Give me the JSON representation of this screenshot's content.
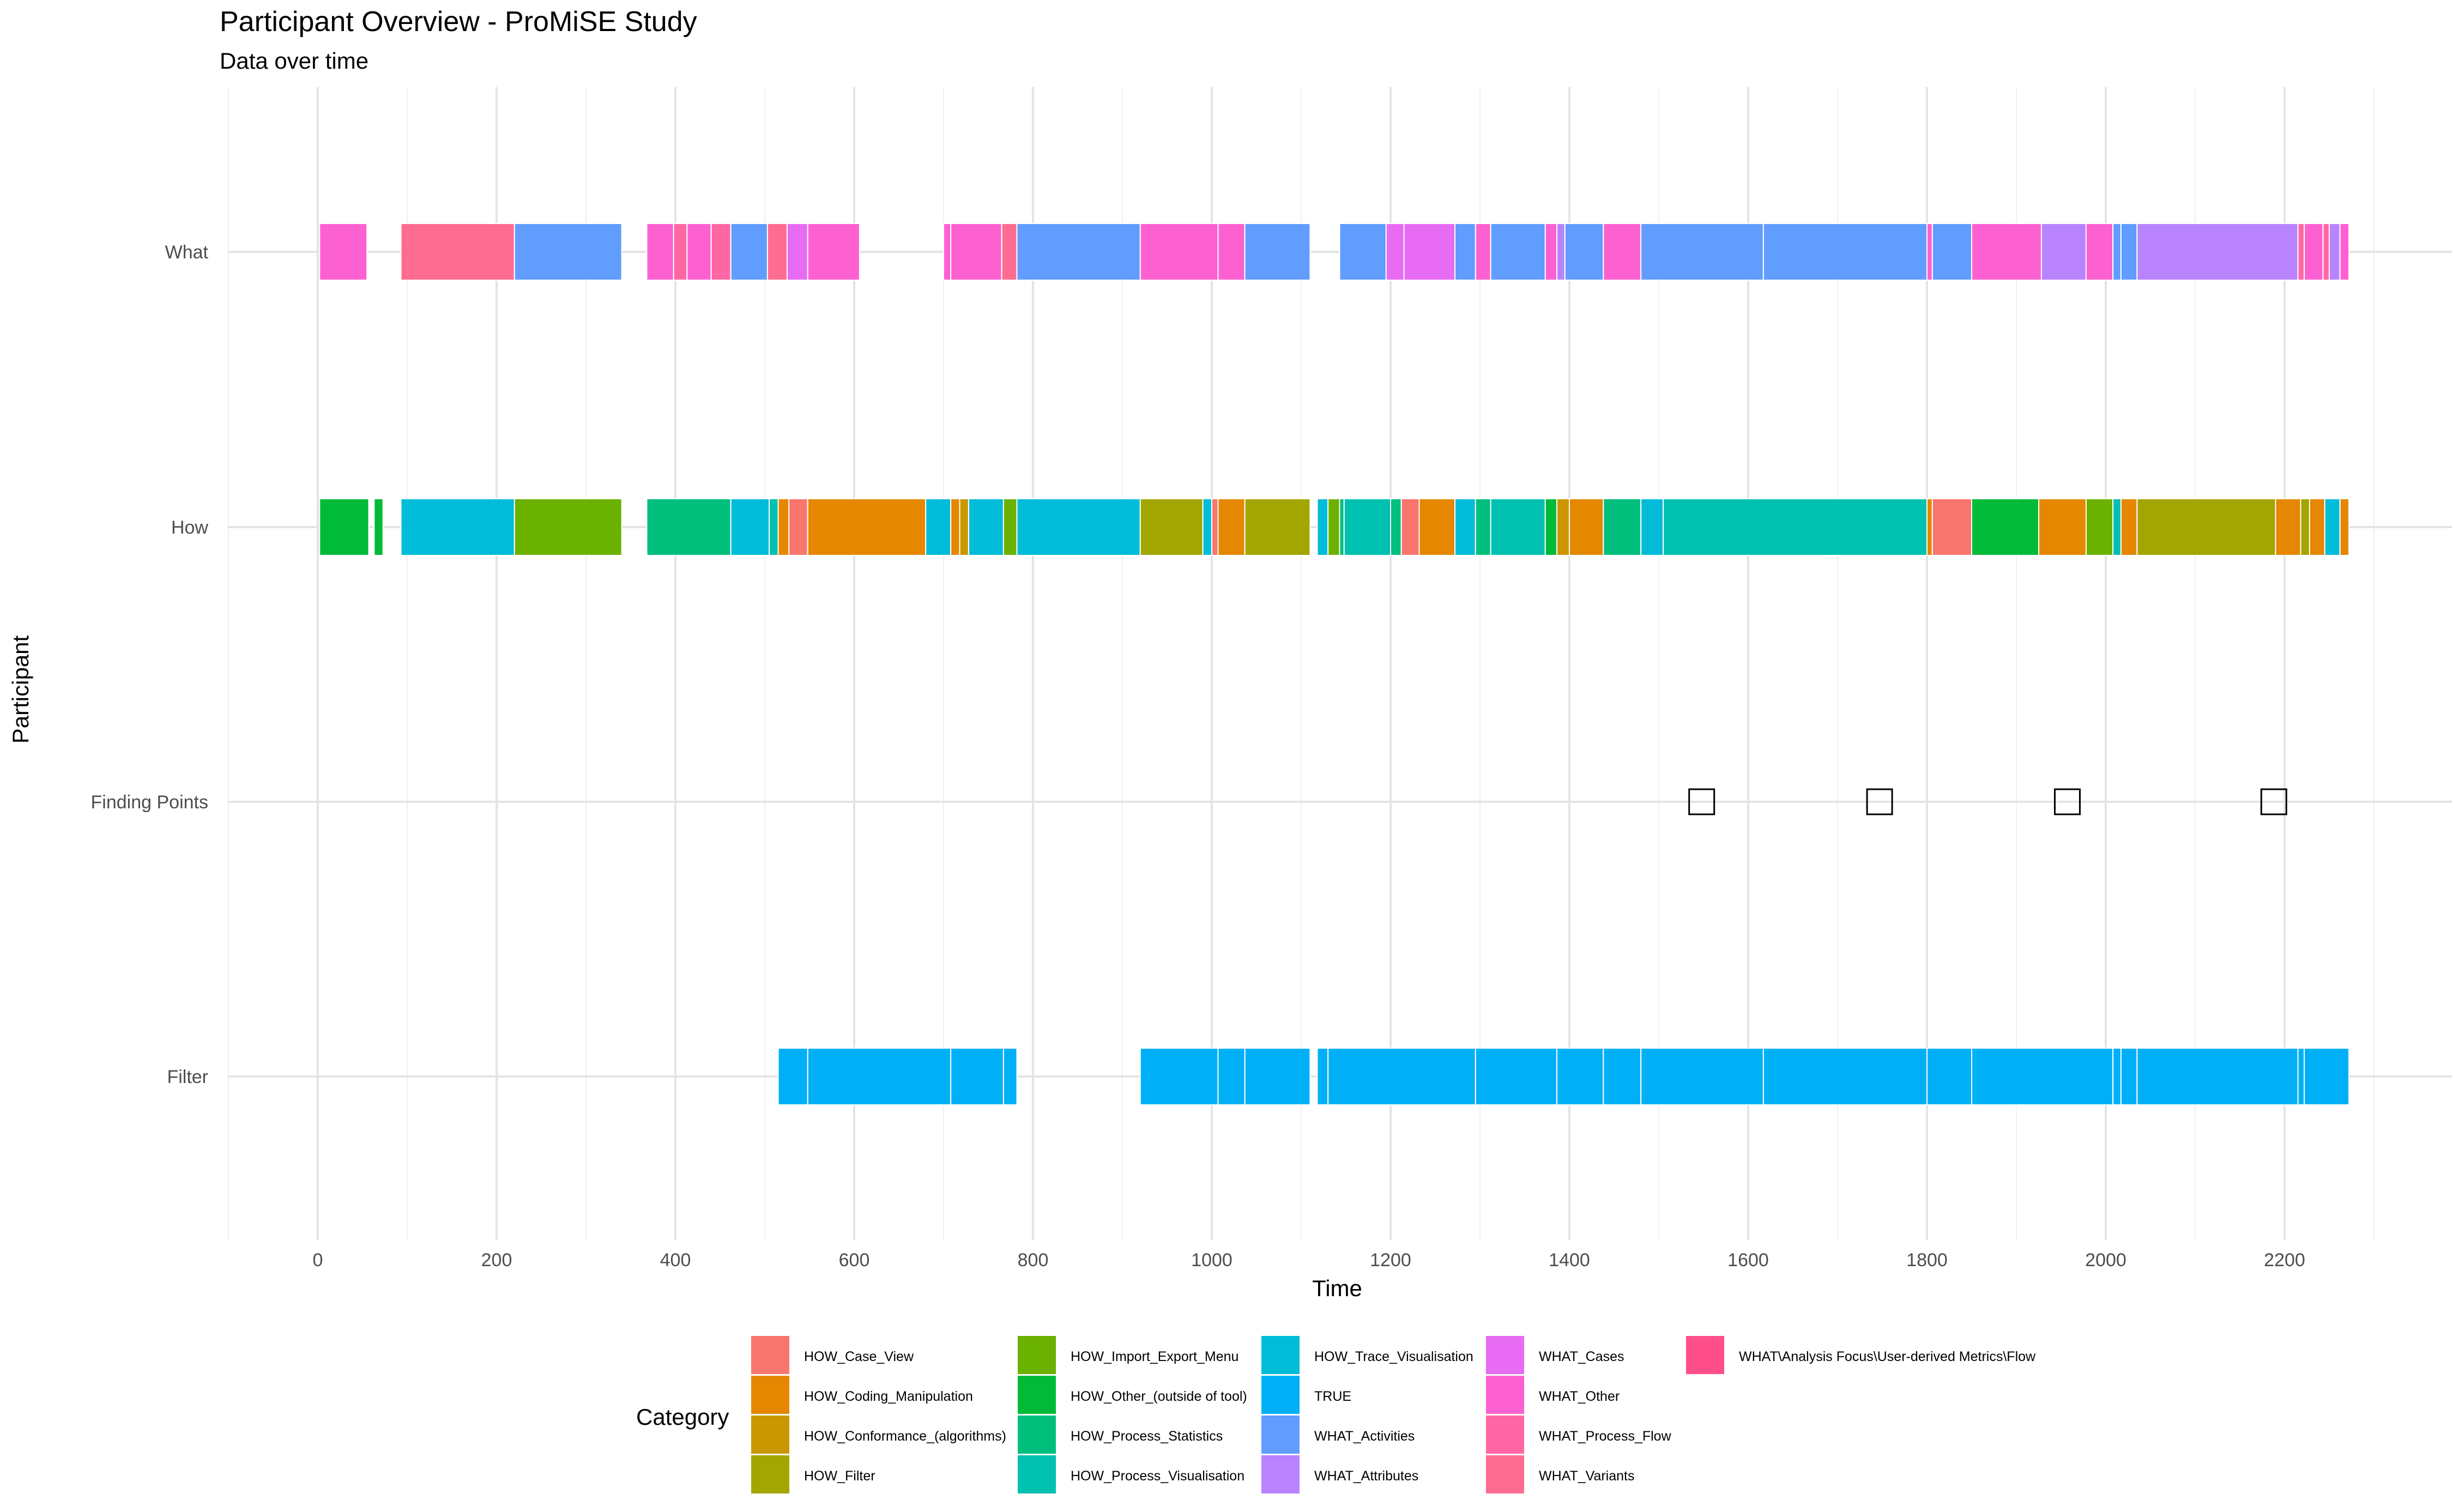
{
  "chart_data": {
    "type": "timeline",
    "title": "Participant Overview - ProMiSE Study",
    "subtitle": "Data over time",
    "xlabel": "Time",
    "ylabel": "Participant",
    "xlim": [
      -100,
      2380
    ],
    "x_ticks": [
      0,
      200,
      400,
      600,
      800,
      1000,
      1200,
      1400,
      1600,
      1800,
      2000,
      2200
    ],
    "grid": true,
    "legend": {
      "title": "Category",
      "position": "bottom"
    },
    "rows": [
      "What",
      "How",
      "Finding Points",
      "Filter"
    ],
    "categories": [
      {
        "name": "HOW_Case_View",
        "color": "#F8766D"
      },
      {
        "name": "HOW_Coding_Manipulation",
        "color": "#E58700"
      },
      {
        "name": "HOW_Conformance_(algorithms)",
        "color": "#C99800"
      },
      {
        "name": "HOW_Filter",
        "color": "#A3A500"
      },
      {
        "name": "HOW_Import_Export_Menu",
        "color": "#6BB100"
      },
      {
        "name": "HOW_Other_(outside of tool)",
        "color": "#00BA38"
      },
      {
        "name": "HOW_Process_Statistics",
        "color": "#00BF7D"
      },
      {
        "name": "HOW_Process_Visualisation",
        "color": "#00C0AF"
      },
      {
        "name": "HOW_Trace_Visualisation",
        "color": "#00BCD8"
      },
      {
        "name": "TRUE",
        "color": "#00B0F6"
      },
      {
        "name": "WHAT_Activities",
        "color": "#619CFF"
      },
      {
        "name": "WHAT_Attributes",
        "color": "#B983FF"
      },
      {
        "name": "WHAT_Cases",
        "color": "#E76BF3"
      },
      {
        "name": "WHAT_Other",
        "color": "#FD61D1"
      },
      {
        "name": "WHAT_Process_Flow",
        "color": "#FF67A4"
      },
      {
        "name": "WHAT_Variants",
        "color": "#FF6C91"
      },
      {
        "name": "WHAT\\Analysis Focus\\User-derived Metrics\\Flow",
        "color": "#FF4F8B"
      }
    ],
    "series": [
      {
        "row": "What",
        "segments": [
          {
            "start": 2,
            "end": 55,
            "category": "WHAT_Other"
          },
          {
            "start": 93,
            "end": 220,
            "category": "WHAT_Variants"
          },
          {
            "start": 220,
            "end": 340,
            "category": "WHAT_Activities"
          },
          {
            "start": 368,
            "end": 398,
            "category": "WHAT_Other"
          },
          {
            "start": 398,
            "end": 413,
            "category": "WHAT_Process_Flow"
          },
          {
            "start": 413,
            "end": 440,
            "category": "WHAT_Other"
          },
          {
            "start": 440,
            "end": 462,
            "category": "WHAT_Process_Flow"
          },
          {
            "start": 462,
            "end": 503,
            "category": "WHAT_Activities"
          },
          {
            "start": 503,
            "end": 525,
            "category": "WHAT_Variants"
          },
          {
            "start": 525,
            "end": 548,
            "category": "WHAT_Cases"
          },
          {
            "start": 548,
            "end": 606,
            "category": "WHAT_Other"
          },
          {
            "start": 700,
            "end": 708,
            "category": "WHAT_Other"
          },
          {
            "start": 708,
            "end": 765,
            "category": "WHAT_Other"
          },
          {
            "start": 765,
            "end": 782,
            "category": "WHAT_Variants"
          },
          {
            "start": 782,
            "end": 920,
            "category": "WHAT_Activities"
          },
          {
            "start": 920,
            "end": 1007,
            "category": "WHAT_Other"
          },
          {
            "start": 1007,
            "end": 1037,
            "category": "WHAT_Other"
          },
          {
            "start": 1037,
            "end": 1110,
            "category": "WHAT_Activities"
          },
          {
            "start": 1143,
            "end": 1195,
            "category": "WHAT_Activities"
          },
          {
            "start": 1195,
            "end": 1215,
            "category": "WHAT_Cases"
          },
          {
            "start": 1215,
            "end": 1272,
            "category": "WHAT_Cases"
          },
          {
            "start": 1272,
            "end": 1295,
            "category": "WHAT_Activities"
          },
          {
            "start": 1295,
            "end": 1312,
            "category": "WHAT_Other"
          },
          {
            "start": 1312,
            "end": 1373,
            "category": "WHAT_Activities"
          },
          {
            "start": 1373,
            "end": 1386,
            "category": "WHAT_Other"
          },
          {
            "start": 1386,
            "end": 1395,
            "category": "WHAT_Attributes"
          },
          {
            "start": 1395,
            "end": 1438,
            "category": "WHAT_Activities"
          },
          {
            "start": 1438,
            "end": 1480,
            "category": "WHAT_Other"
          },
          {
            "start": 1480,
            "end": 1617,
            "category": "WHAT_Activities"
          },
          {
            "start": 1617,
            "end": 1800,
            "category": "WHAT_Activities"
          },
          {
            "start": 1800,
            "end": 1806,
            "category": "WHAT_Other"
          },
          {
            "start": 1806,
            "end": 1850,
            "category": "WHAT_Activities"
          },
          {
            "start": 1850,
            "end": 1928,
            "category": "WHAT_Other"
          },
          {
            "start": 1928,
            "end": 1978,
            "category": "WHAT_Attributes"
          },
          {
            "start": 1978,
            "end": 2008,
            "category": "WHAT_Other"
          },
          {
            "start": 2008,
            "end": 2017,
            "category": "WHAT_Activities"
          },
          {
            "start": 2017,
            "end": 2035,
            "category": "WHAT_Activities"
          },
          {
            "start": 2035,
            "end": 2215,
            "category": "WHAT_Attributes"
          },
          {
            "start": 2215,
            "end": 2222,
            "category": "WHAT_Process_Flow"
          },
          {
            "start": 2222,
            "end": 2243,
            "category": "WHAT_Other"
          },
          {
            "start": 2243,
            "end": 2250,
            "category": "WHAT_Process_Flow"
          },
          {
            "start": 2250,
            "end": 2262,
            "category": "WHAT_Attributes"
          },
          {
            "start": 2262,
            "end": 2272,
            "category": "WHAT_Other"
          }
        ]
      },
      {
        "row": "How",
        "segments": [
          {
            "start": 2,
            "end": 57,
            "category": "HOW_Other_(outside of tool)"
          },
          {
            "start": 63,
            "end": 73,
            "category": "HOW_Other_(outside of tool)"
          },
          {
            "start": 93,
            "end": 220,
            "category": "HOW_Trace_Visualisation"
          },
          {
            "start": 220,
            "end": 340,
            "category": "HOW_Import_Export_Menu"
          },
          {
            "start": 368,
            "end": 462,
            "category": "HOW_Process_Statistics"
          },
          {
            "start": 462,
            "end": 505,
            "category": "HOW_Trace_Visualisation"
          },
          {
            "start": 505,
            "end": 515,
            "category": "HOW_Process_Visualisation"
          },
          {
            "start": 515,
            "end": 527,
            "category": "HOW_Coding_Manipulation"
          },
          {
            "start": 527,
            "end": 548,
            "category": "HOW_Case_View"
          },
          {
            "start": 548,
            "end": 680,
            "category": "HOW_Coding_Manipulation"
          },
          {
            "start": 680,
            "end": 708,
            "category": "HOW_Trace_Visualisation"
          },
          {
            "start": 708,
            "end": 718,
            "category": "HOW_Coding_Manipulation"
          },
          {
            "start": 718,
            "end": 728,
            "category": "HOW_Conformance_(algorithms)"
          },
          {
            "start": 728,
            "end": 767,
            "category": "HOW_Trace_Visualisation"
          },
          {
            "start": 767,
            "end": 782,
            "category": "HOW_Import_Export_Menu"
          },
          {
            "start": 782,
            "end": 920,
            "category": "HOW_Trace_Visualisation"
          },
          {
            "start": 920,
            "end": 990,
            "category": "HOW_Filter"
          },
          {
            "start": 990,
            "end": 1000,
            "category": "HOW_Trace_Visualisation"
          },
          {
            "start": 1000,
            "end": 1007,
            "category": "HOW_Case_View"
          },
          {
            "start": 1007,
            "end": 1037,
            "category": "HOW_Coding_Manipulation"
          },
          {
            "start": 1037,
            "end": 1110,
            "category": "HOW_Filter"
          },
          {
            "start": 1118,
            "end": 1130,
            "category": "HOW_Trace_Visualisation"
          },
          {
            "start": 1130,
            "end": 1143,
            "category": "HOW_Import_Export_Menu"
          },
          {
            "start": 1143,
            "end": 1148,
            "category": "HOW_Process_Statistics"
          },
          {
            "start": 1148,
            "end": 1200,
            "category": "HOW_Process_Visualisation"
          },
          {
            "start": 1200,
            "end": 1212,
            "category": "HOW_Process_Statistics"
          },
          {
            "start": 1212,
            "end": 1232,
            "category": "HOW_Case_View"
          },
          {
            "start": 1232,
            "end": 1272,
            "category": "HOW_Coding_Manipulation"
          },
          {
            "start": 1272,
            "end": 1295,
            "category": "HOW_Trace_Visualisation"
          },
          {
            "start": 1295,
            "end": 1312,
            "category": "HOW_Process_Statistics"
          },
          {
            "start": 1312,
            "end": 1373,
            "category": "HOW_Process_Visualisation"
          },
          {
            "start": 1373,
            "end": 1386,
            "category": "HOW_Other_(outside of tool)"
          },
          {
            "start": 1386,
            "end": 1400,
            "category": "HOW_Conformance_(algorithms)"
          },
          {
            "start": 1400,
            "end": 1438,
            "category": "HOW_Coding_Manipulation"
          },
          {
            "start": 1438,
            "end": 1480,
            "category": "HOW_Process_Statistics"
          },
          {
            "start": 1480,
            "end": 1505,
            "category": "HOW_Trace_Visualisation"
          },
          {
            "start": 1505,
            "end": 1800,
            "category": "HOW_Process_Visualisation"
          },
          {
            "start": 1800,
            "end": 1806,
            "category": "HOW_Coding_Manipulation"
          },
          {
            "start": 1806,
            "end": 1850,
            "category": "HOW_Case_View"
          },
          {
            "start": 1850,
            "end": 1925,
            "category": "HOW_Other_(outside of tool)"
          },
          {
            "start": 1925,
            "end": 1978,
            "category": "HOW_Coding_Manipulation"
          },
          {
            "start": 1978,
            "end": 2008,
            "category": "HOW_Import_Export_Menu"
          },
          {
            "start": 2008,
            "end": 2017,
            "category": "HOW_Process_Visualisation"
          },
          {
            "start": 2017,
            "end": 2035,
            "category": "HOW_Coding_Manipulation"
          },
          {
            "start": 2035,
            "end": 2190,
            "category": "HOW_Filter"
          },
          {
            "start": 2190,
            "end": 2218,
            "category": "HOW_Coding_Manipulation"
          },
          {
            "start": 2218,
            "end": 2228,
            "category": "HOW_Filter"
          },
          {
            "start": 2228,
            "end": 2245,
            "category": "HOW_Coding_Manipulation"
          },
          {
            "start": 2245,
            "end": 2262,
            "category": "HOW_Trace_Visualisation"
          },
          {
            "start": 2262,
            "end": 2272,
            "category": "HOW_Coding_Manipulation"
          }
        ]
      },
      {
        "row": "Finding Points",
        "points": [
          1548,
          1747,
          1957,
          2188
        ]
      },
      {
        "row": "Filter",
        "segments": [
          {
            "start": 515,
            "end": 548,
            "category": "TRUE"
          },
          {
            "start": 548,
            "end": 708,
            "category": "TRUE"
          },
          {
            "start": 708,
            "end": 767,
            "category": "TRUE"
          },
          {
            "start": 767,
            "end": 782,
            "category": "TRUE"
          },
          {
            "start": 920,
            "end": 1007,
            "category": "TRUE"
          },
          {
            "start": 1007,
            "end": 1037,
            "category": "TRUE"
          },
          {
            "start": 1037,
            "end": 1110,
            "category": "TRUE"
          },
          {
            "start": 1118,
            "end": 1130,
            "category": "TRUE"
          },
          {
            "start": 1130,
            "end": 1295,
            "category": "TRUE"
          },
          {
            "start": 1295,
            "end": 1386,
            "category": "TRUE"
          },
          {
            "start": 1386,
            "end": 1438,
            "category": "TRUE"
          },
          {
            "start": 1438,
            "end": 1480,
            "category": "TRUE"
          },
          {
            "start": 1480,
            "end": 1617,
            "category": "TRUE"
          },
          {
            "start": 1617,
            "end": 1800,
            "category": "TRUE"
          },
          {
            "start": 1800,
            "end": 1850,
            "category": "TRUE"
          },
          {
            "start": 1850,
            "end": 2008,
            "category": "TRUE"
          },
          {
            "start": 2008,
            "end": 2017,
            "category": "TRUE"
          },
          {
            "start": 2017,
            "end": 2035,
            "category": "TRUE"
          },
          {
            "start": 2035,
            "end": 2215,
            "category": "TRUE"
          },
          {
            "start": 2215,
            "end": 2222,
            "category": "TRUE"
          },
          {
            "start": 2222,
            "end": 2272,
            "category": "TRUE"
          }
        ]
      }
    ]
  }
}
